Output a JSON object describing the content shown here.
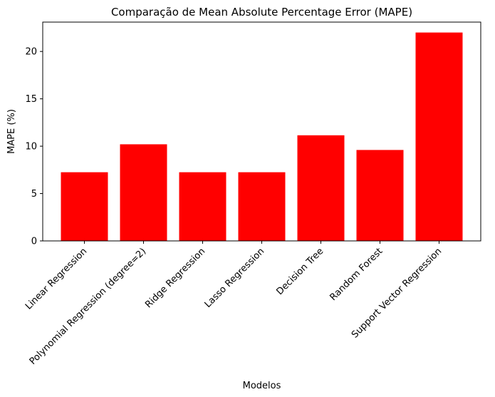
{
  "chart_data": {
    "type": "bar",
    "title": "Comparação de Mean Absolute Percentage Error (MAPE)",
    "xlabel": "Modelos",
    "ylabel": "MAPE (%)",
    "categories": [
      "Linear Regression",
      "Polynomial Regression (degree=2)",
      "Ridge Regression",
      "Lasso Regression",
      "Decision Tree",
      "Random Forest",
      "Support Vector Regression"
    ],
    "values": [
      7.25,
      10.2,
      7.25,
      7.25,
      11.15,
      9.6,
      22.0
    ],
    "ylim": [
      0,
      23.1
    ],
    "yticks": [
      0,
      5,
      10,
      15,
      20
    ],
    "bar_color": "#ff0000",
    "grid": false,
    "legend": "none"
  }
}
